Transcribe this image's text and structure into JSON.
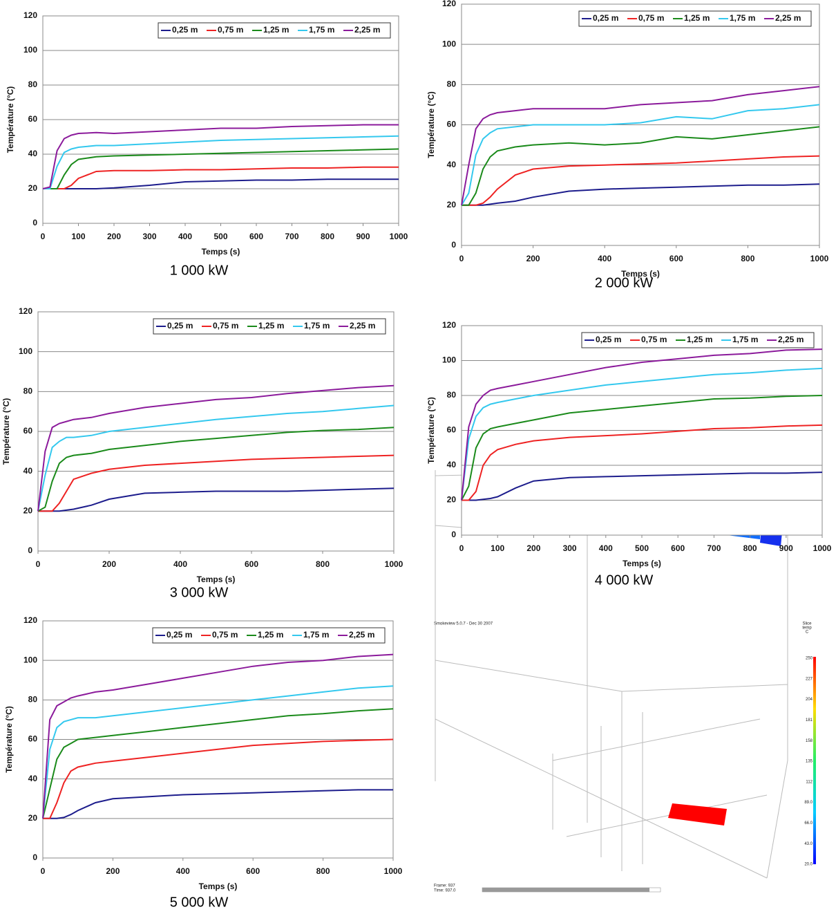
{
  "chart_data": [
    {
      "type": "line",
      "caption": "1 000 kW",
      "x_label": "Temps (s)",
      "y_label": "Température (°C)",
      "xlim": [
        0,
        1000
      ],
      "xticks": [
        0,
        100,
        200,
        300,
        400,
        500,
        600,
        700,
        800,
        900,
        1000
      ],
      "ylim": [
        0,
        120
      ],
      "yticks": [
        0,
        20,
        40,
        60,
        80,
        100,
        120
      ],
      "grid": true,
      "legend": "top-right",
      "x": [
        0,
        20,
        40,
        60,
        80,
        100,
        150,
        200,
        300,
        400,
        500,
        600,
        700,
        800,
        900,
        1000
      ],
      "series": [
        {
          "name": "0,25 m",
          "color": "#1c1c8c",
          "values": [
            20,
            20,
            20,
            20,
            20,
            20,
            20,
            20.5,
            22,
            24,
            24.5,
            25,
            25,
            25.5,
            25.5,
            25.5
          ]
        },
        {
          "name": "0,75 m",
          "color": "#ee2222",
          "values": [
            20,
            20,
            20,
            20,
            22,
            26,
            30,
            30.5,
            30.5,
            31,
            31,
            31.5,
            32,
            32,
            32.5,
            32.5
          ]
        },
        {
          "name": "1,25 m",
          "color": "#1a8a1a",
          "values": [
            20,
            20,
            20,
            28,
            34,
            37,
            38.5,
            39,
            39.5,
            40,
            40.5,
            41,
            41.5,
            42,
            42.5,
            43
          ]
        },
        {
          "name": "1,75 m",
          "color": "#33c8ee",
          "values": [
            20,
            20,
            33,
            41,
            43,
            44,
            45,
            45,
            46,
            47,
            48,
            48.5,
            49,
            49.5,
            50,
            50.5
          ]
        },
        {
          "name": "2,25 m",
          "color": "#8b1a9b",
          "values": [
            20,
            21,
            42,
            49,
            51,
            52,
            52.5,
            52,
            53,
            54,
            55,
            55,
            56,
            56.5,
            57,
            57
          ]
        }
      ]
    },
    {
      "type": "line",
      "caption": "2 000 kW",
      "x_label": "Temps (s)",
      "y_label": "Température (°C)",
      "xlim": [
        0,
        1000
      ],
      "xticks": [
        0,
        200,
        400,
        600,
        800,
        1000
      ],
      "ylim": [
        0,
        120
      ],
      "yticks": [
        0,
        20,
        40,
        60,
        80,
        100,
        120
      ],
      "grid": true,
      "legend": "top-right",
      "x": [
        0,
        20,
        40,
        60,
        80,
        100,
        150,
        200,
        300,
        400,
        500,
        600,
        700,
        800,
        900,
        1000
      ],
      "series": [
        {
          "name": "0,25 m",
          "color": "#1c1c8c",
          "values": [
            20,
            20,
            20,
            20,
            20.5,
            21,
            22,
            24,
            27,
            28,
            28.5,
            29,
            29.5,
            30,
            30,
            30.5
          ]
        },
        {
          "name": "0,75 m",
          "color": "#ee2222",
          "values": [
            20,
            20,
            20,
            21,
            24,
            28,
            35,
            38,
            39.5,
            40,
            40.5,
            41,
            42,
            43,
            44,
            44.5
          ]
        },
        {
          "name": "1,25 m",
          "color": "#1a8a1a",
          "values": [
            20,
            20,
            26,
            38,
            44,
            47,
            49,
            50,
            51,
            50,
            51,
            54,
            53,
            55,
            57,
            59
          ]
        },
        {
          "name": "1,75 m",
          "color": "#33c8ee",
          "values": [
            20,
            26,
            45,
            53,
            56,
            58,
            59,
            60,
            60,
            60,
            61,
            64,
            63,
            67,
            68,
            70
          ]
        },
        {
          "name": "2,25 m",
          "color": "#8b1a9b",
          "values": [
            20,
            40,
            58,
            63,
            65,
            66,
            67,
            68,
            68,
            68,
            70,
            71,
            72,
            75,
            77,
            79
          ]
        }
      ]
    },
    {
      "type": "line",
      "caption": "3 000 kW",
      "x_label": "Temps (s)",
      "y_label": "Température (°C)",
      "xlim": [
        0,
        1000
      ],
      "xticks": [
        0,
        200,
        400,
        600,
        800,
        1000
      ],
      "ylim": [
        0,
        120
      ],
      "yticks": [
        0,
        20,
        40,
        60,
        80,
        100,
        120
      ],
      "grid": true,
      "legend": "top-right",
      "x": [
        0,
        20,
        40,
        60,
        80,
        100,
        150,
        200,
        300,
        400,
        500,
        600,
        700,
        800,
        900,
        1000
      ],
      "series": [
        {
          "name": "0,25 m",
          "color": "#1c1c8c",
          "values": [
            20,
            20,
            20,
            20,
            20.5,
            21,
            23,
            26,
            29,
            29.5,
            30,
            30,
            30,
            30.5,
            31,
            31.5
          ]
        },
        {
          "name": "0,75 m",
          "color": "#ee2222",
          "values": [
            20,
            20,
            20,
            24,
            30,
            36,
            39,
            41,
            43,
            44,
            45,
            46,
            46.5,
            47,
            47.5,
            48
          ]
        },
        {
          "name": "1,25 m",
          "color": "#1a8a1a",
          "values": [
            20,
            22,
            35,
            44,
            47,
            48,
            49,
            51,
            53,
            55,
            56.5,
            58,
            59.5,
            60.5,
            61,
            62
          ]
        },
        {
          "name": "1,75 m",
          "color": "#33c8ee",
          "values": [
            20,
            38,
            52,
            55,
            57,
            57,
            58,
            60,
            62,
            64,
            66,
            67.5,
            69,
            70,
            71.5,
            73
          ]
        },
        {
          "name": "2,25 m",
          "color": "#8b1a9b",
          "values": [
            20,
            50,
            62,
            64,
            65,
            66,
            67,
            69,
            72,
            74,
            76,
            77,
            79,
            80.5,
            82,
            83
          ]
        }
      ]
    },
    {
      "type": "line",
      "caption": "4 000 kW",
      "x_label": "Temps (s)",
      "y_label": "Température (°C)",
      "xlim": [
        0,
        1000
      ],
      "xticks": [
        0,
        100,
        200,
        300,
        400,
        500,
        600,
        700,
        800,
        900,
        1000
      ],
      "ylim": [
        0,
        120
      ],
      "yticks": [
        0,
        20,
        40,
        60,
        80,
        100,
        120
      ],
      "grid": true,
      "legend": "top-right",
      "x": [
        0,
        20,
        40,
        60,
        80,
        100,
        150,
        200,
        300,
        400,
        500,
        600,
        700,
        800,
        900,
        1000
      ],
      "series": [
        {
          "name": "0,25 m",
          "color": "#1c1c8c",
          "values": [
            20,
            20,
            20,
            20.5,
            21,
            22,
            27,
            31,
            33,
            33.5,
            34,
            34.5,
            35,
            35.5,
            35.5,
            36
          ]
        },
        {
          "name": "0,75 m",
          "color": "#ee2222",
          "values": [
            20,
            20,
            25,
            40,
            46,
            49,
            52,
            54,
            56,
            57,
            58,
            59.5,
            61,
            61.5,
            62.5,
            63
          ]
        },
        {
          "name": "1,25 m",
          "color": "#1a8a1a",
          "values": [
            20,
            28,
            50,
            58,
            61,
            62,
            64,
            66,
            70,
            72,
            74,
            76,
            78,
            78.5,
            79.5,
            80
          ]
        },
        {
          "name": "1,75 m",
          "color": "#33c8ee",
          "values": [
            20,
            55,
            68,
            73,
            75,
            76,
            78,
            80,
            83,
            86,
            88,
            90,
            92,
            93,
            94.5,
            95.5
          ]
        },
        {
          "name": "2,25 m",
          "color": "#8b1a9b",
          "values": [
            20,
            62,
            75,
            80,
            83,
            84,
            86,
            88,
            92,
            96,
            99,
            101,
            103,
            104,
            106,
            106.5
          ]
        }
      ]
    },
    {
      "type": "line",
      "caption": "5 000 kW",
      "x_label": "Temps (s)",
      "y_label": "Température (°C)",
      "xlim": [
        0,
        1000
      ],
      "xticks": [
        0,
        200,
        400,
        600,
        800,
        1000
      ],
      "ylim": [
        0,
        120
      ],
      "yticks": [
        0,
        20,
        40,
        60,
        80,
        100,
        120
      ],
      "grid": true,
      "legend": "top-right",
      "x": [
        0,
        20,
        40,
        60,
        80,
        100,
        150,
        200,
        300,
        400,
        500,
        600,
        700,
        800,
        900,
        1000
      ],
      "series": [
        {
          "name": "0,25 m",
          "color": "#1c1c8c",
          "values": [
            20,
            20,
            20,
            20.5,
            22,
            24,
            28,
            30,
            31,
            32,
            32.5,
            33,
            33.5,
            34,
            34.5,
            34.5
          ]
        },
        {
          "name": "0,75 m",
          "color": "#ee2222",
          "values": [
            20,
            20,
            28,
            38,
            44,
            46,
            48,
            49,
            51,
            53,
            55,
            57,
            58,
            59,
            59.5,
            60
          ]
        },
        {
          "name": "1,25 m",
          "color": "#1a8a1a",
          "values": [
            20,
            35,
            50,
            56,
            58,
            60,
            61,
            62,
            64,
            66,
            68,
            70,
            72,
            73,
            74.5,
            75.5
          ]
        },
        {
          "name": "1,75 m",
          "color": "#33c8ee",
          "values": [
            20,
            55,
            66,
            69,
            70,
            71,
            71,
            72,
            74,
            76,
            78,
            80,
            82,
            84,
            86,
            87
          ]
        },
        {
          "name": "2,25 m",
          "color": "#8b1a9b",
          "values": [
            20,
            70,
            77,
            79,
            81,
            82,
            84,
            85,
            88,
            91,
            94,
            97,
            99,
            100,
            102,
            103
          ]
        }
      ]
    }
  ],
  "smokeview": {
    "title": "Smokeview 5.0.7 - Dec 30 2007",
    "slice_label": [
      "Slice",
      "temp",
      "C"
    ],
    "colorbar_labels": [
      "250",
      "227",
      "204",
      "181",
      "158",
      "135",
      "112",
      "89.0",
      "66.0",
      "43.0",
      "20.0"
    ],
    "frame": "Frame: 937",
    "time": "Time: 937.0"
  }
}
